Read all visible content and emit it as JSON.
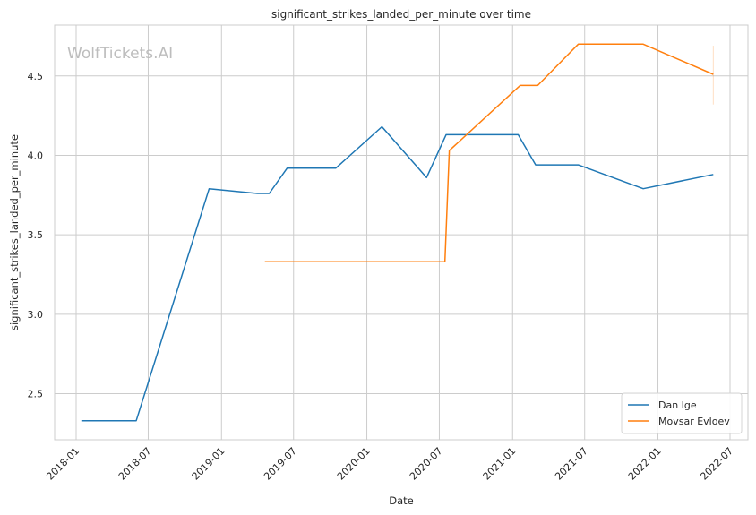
{
  "chart_data": {
    "type": "line",
    "title": "significant_strikes_landed_per_minute over time",
    "xlabel": "Date",
    "ylabel": "significant_strikes_landed_per_minute",
    "watermark": "WolfTickets.AI",
    "x_ticks": [
      "2018-01",
      "2018-07",
      "2019-01",
      "2019-07",
      "2020-01",
      "2020-07",
      "2021-01",
      "2021-07",
      "2022-01",
      "2022-07"
    ],
    "y_ticks": [
      "2.5",
      "3.0",
      "3.5",
      "4.0",
      "4.5"
    ],
    "xlim": [
      "2017-11-08",
      "2022-08-15"
    ],
    "ylim": [
      2.21,
      4.82
    ],
    "grid": true,
    "legend_position": "lower-right",
    "series": [
      {
        "name": "Dan Ige",
        "color": "#1f77b4",
        "x": [
          "2018-01-14",
          "2018-06-01",
          "2018-12-01",
          "2019-04-01",
          "2019-05-01",
          "2019-06-15",
          "2019-10-15",
          "2020-02-08",
          "2020-05-30",
          "2020-07-18",
          "2021-01-15",
          "2021-02-28",
          "2021-06-15",
          "2021-11-25",
          "2022-05-20"
        ],
        "y": [
          2.33,
          2.33,
          3.79,
          3.76,
          3.76,
          3.92,
          3.92,
          4.18,
          3.86,
          4.13,
          4.13,
          3.94,
          3.94,
          3.79,
          3.88
        ]
      },
      {
        "name": "Movsar Evloev",
        "color": "#ff7f0e",
        "x": [
          "2019-04-20",
          "2020-07-15",
          "2020-07-26",
          "2021-01-20",
          "2021-03-05",
          "2021-06-15",
          "2021-11-25",
          "2022-05-20"
        ],
        "y": [
          3.33,
          3.33,
          4.03,
          4.44,
          4.44,
          4.7,
          4.7,
          4.51
        ]
      }
    ]
  }
}
